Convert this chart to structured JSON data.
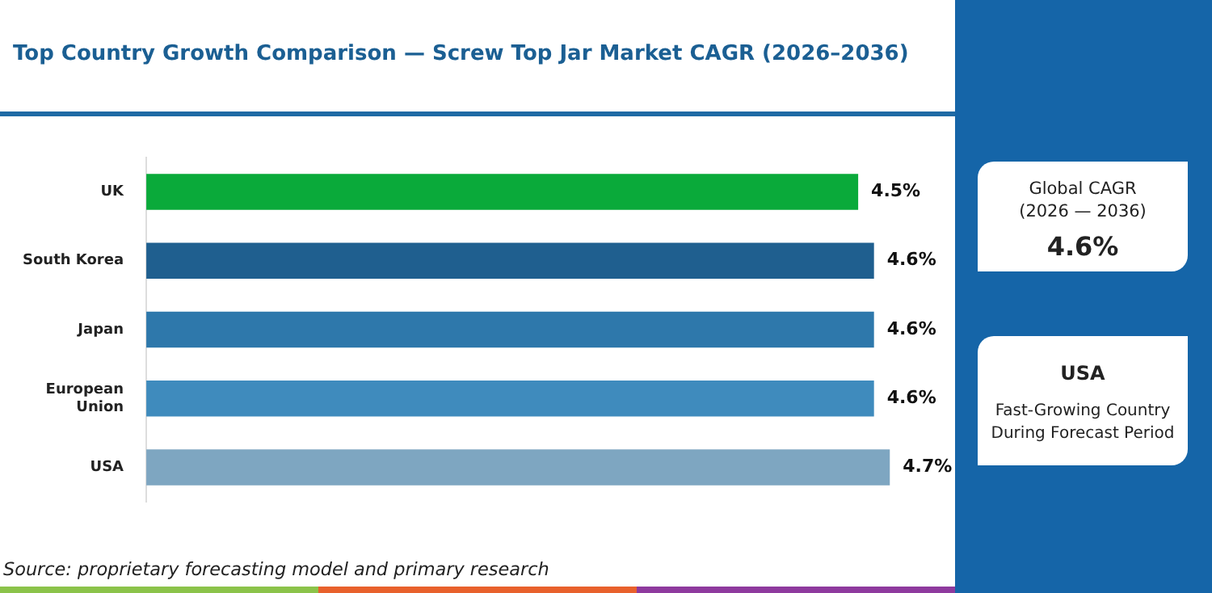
{
  "chart_data": {
    "type": "bar",
    "orientation": "horizontal",
    "title": "Top Country Growth Comparison — Screw Top Jar Market CAGR (2026–2036)",
    "categories": [
      "UK",
      "South Korea",
      "Japan",
      "European Union",
      "USA"
    ],
    "values": [
      4.5,
      4.6,
      4.6,
      4.6,
      4.7
    ],
    "colors": [
      "#0aaa3a",
      "#1f5f8f",
      "#2e78ab",
      "#3f8bbd",
      "#7ea6c1"
    ],
    "value_labels": [
      "4.5%",
      "4.6%",
      "4.6%",
      "4.6%",
      "4.7%"
    ],
    "tick_labels": "y",
    "grid": false,
    "legend": false,
    "annotations": [
      "Global CAGR (2026 — 2036)",
      "4.6%",
      "USA",
      "Fast-Growing Country During Forecast Period",
      "Source: proprietary forecasting model and primary research"
    ]
  }
}
